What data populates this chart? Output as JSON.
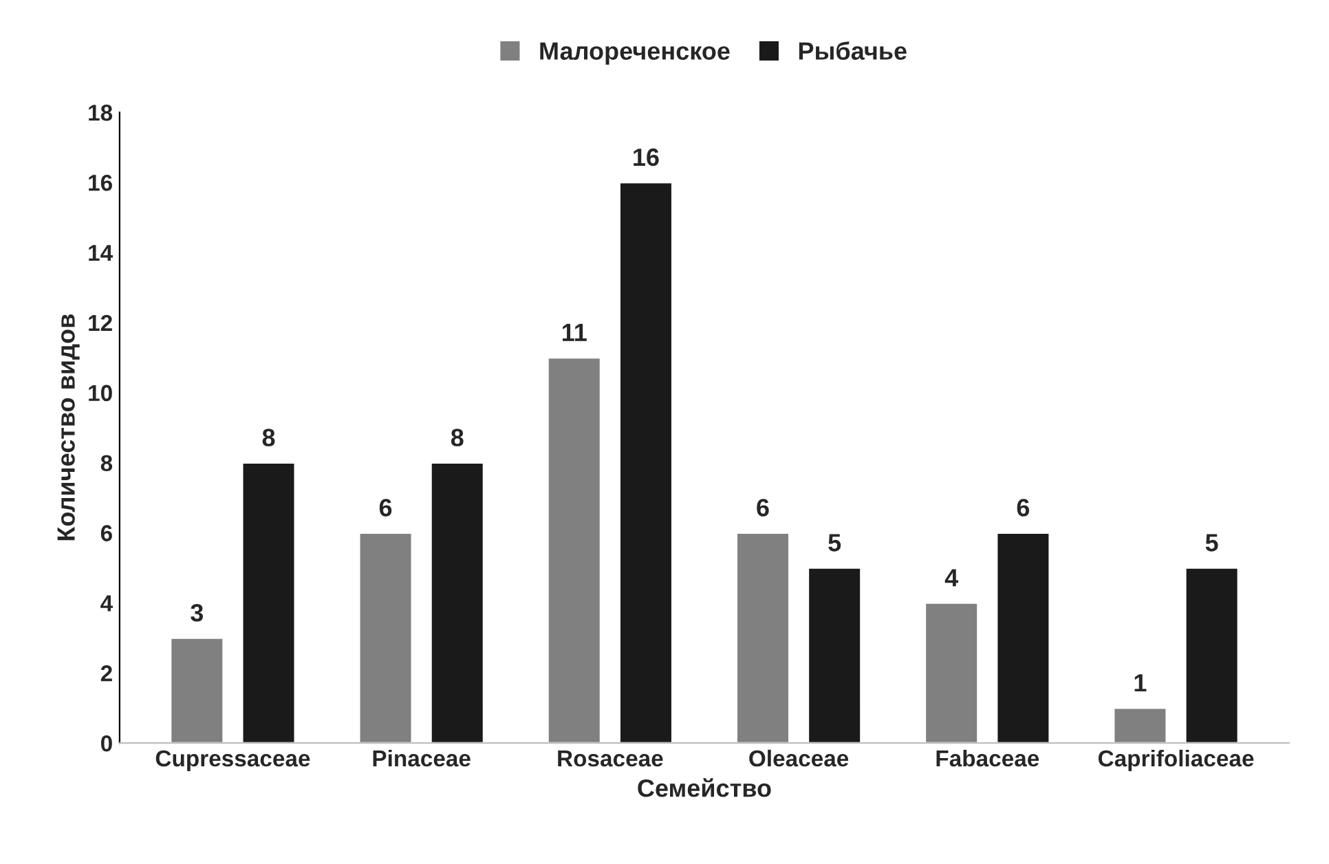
{
  "chart_data": {
    "type": "bar",
    "xlabel": "Семейство",
    "ylabel": "Количество видов",
    "categories": [
      "Cupressaceae",
      "Pinaceae",
      "Rosaceae",
      "Oleaceae",
      "Fabaceae",
      "Caprifoliaceae"
    ],
    "series": [
      {
        "name": "Малореченское",
        "color": "#808080",
        "values": [
          3,
          6,
          11,
          6,
          4,
          1
        ]
      },
      {
        "name": "Рыбачье",
        "color": "#1a1a1a",
        "values": [
          8,
          8,
          16,
          5,
          6,
          5
        ]
      }
    ],
    "ylim": [
      0,
      18
    ],
    "yticks": [
      0,
      2,
      4,
      6,
      8,
      10,
      12,
      14,
      16,
      18
    ],
    "data_labels": true,
    "grid": false,
    "legend": "top"
  }
}
